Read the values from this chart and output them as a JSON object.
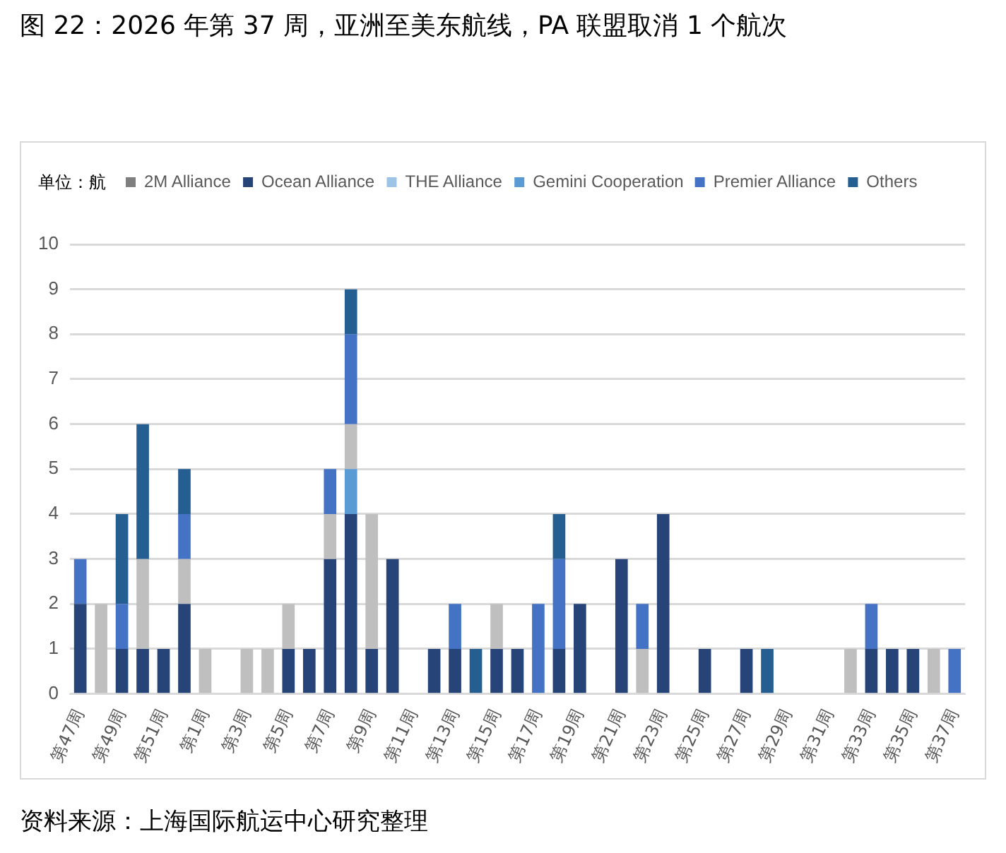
{
  "chart_data": {
    "type": "bar",
    "title": "图 22：2026 年第 37 周，亚洲至美东航线，PA 联盟取消 1 个航次",
    "ylabel": "单位：航",
    "categories": [
      "第47周",
      null,
      "第49周",
      null,
      "第51周",
      null,
      "第1周",
      null,
      "第3周",
      null,
      "第5周",
      null,
      "第7周",
      null,
      "第9周",
      null,
      "第11周",
      null,
      "第13周",
      null,
      "第15周",
      null,
      "第17周",
      null,
      "第19周",
      null,
      "第21周",
      null,
      "第23周",
      null,
      "第25周",
      null,
      "第27周",
      null,
      "第29周",
      null,
      "第31周",
      null,
      "第33周",
      null,
      "第35周",
      null,
      "第37周"
    ],
    "series": [
      {
        "name": "2M Alliance",
        "color": "#7f7f7f",
        "values": [
          0,
          0,
          0,
          0,
          0,
          0,
          0,
          0,
          0,
          0,
          0,
          0,
          0,
          0,
          0,
          0,
          0,
          0,
          0,
          0,
          0,
          0,
          0,
          0,
          0,
          0,
          0,
          0,
          0,
          0,
          0,
          0,
          0,
          0,
          0,
          0,
          0,
          0,
          0,
          0,
          0,
          0,
          0
        ]
      },
      {
        "name": "Ocean Alliance",
        "color": "#264478",
        "values": [
          2,
          0,
          1,
          1,
          1,
          2,
          0,
          0,
          0,
          0,
          1,
          1,
          3,
          4,
          1,
          3,
          0,
          1,
          1,
          0,
          1,
          1,
          0,
          1,
          2,
          0,
          3,
          0,
          4,
          0,
          1,
          0,
          1,
          0,
          0,
          0,
          0,
          0,
          1,
          1,
          1,
          0,
          0
        ]
      },
      {
        "name": "THE Alliance",
        "color": "#9dc3e6",
        "values": [
          0,
          0,
          0,
          0,
          0,
          0,
          0,
          0,
          0,
          0,
          0,
          0,
          0,
          0,
          0,
          0,
          0,
          0,
          0,
          0,
          0,
          0,
          0,
          0,
          0,
          0,
          0,
          0,
          0,
          0,
          0,
          0,
          0,
          0,
          0,
          0,
          0,
          0,
          0,
          0,
          0,
          0,
          0
        ]
      },
      {
        "name": "Gemini Cooperation",
        "color": "#5b9bd5",
        "values": [
          0,
          0,
          0,
          0,
          0,
          0,
          0,
          0,
          0,
          0,
          0,
          0,
          0,
          1,
          0,
          0,
          0,
          0,
          0,
          0,
          0,
          0,
          0,
          0,
          0,
          0,
          0,
          0,
          0,
          0,
          0,
          0,
          0,
          0,
          0,
          0,
          0,
          0,
          0,
          0,
          0,
          0,
          0
        ]
      },
      {
        "name": null,
        "color": "#bfbfbf",
        "values": [
          0,
          2,
          0,
          2,
          0,
          1,
          1,
          0,
          1,
          1,
          1,
          0,
          1,
          1,
          3,
          0,
          0,
          0,
          0,
          0,
          1,
          0,
          0,
          0,
          0,
          0,
          0,
          1,
          0,
          0,
          0,
          0,
          0,
          0,
          0,
          0,
          0,
          1,
          0,
          0,
          0,
          1,
          0
        ]
      },
      {
        "name": "Premier Alliance",
        "color": "#4472c4",
        "values": [
          1,
          0,
          1,
          0,
          0,
          1,
          0,
          0,
          0,
          0,
          0,
          0,
          1,
          2,
          0,
          0,
          0,
          0,
          1,
          0,
          0,
          0,
          2,
          2,
          0,
          0,
          0,
          1,
          0,
          0,
          0,
          0,
          0,
          0,
          0,
          0,
          0,
          0,
          1,
          0,
          0,
          0,
          1
        ]
      },
      {
        "name": "Others",
        "color": "#255e91",
        "values": [
          0,
          0,
          2,
          3,
          0,
          1,
          0,
          0,
          0,
          0,
          0,
          0,
          0,
          1,
          0,
          0,
          0,
          0,
          0,
          1,
          0,
          0,
          0,
          1,
          0,
          0,
          0,
          0,
          0,
          0,
          0,
          0,
          0,
          1,
          0,
          0,
          0,
          0,
          0,
          0,
          0,
          0,
          0
        ]
      }
    ],
    "stacked": true,
    "ylim": [
      0,
      10
    ],
    "yticks": [
      0,
      1,
      2,
      3,
      4,
      5,
      6,
      7,
      8,
      9,
      10
    ],
    "grid": "y",
    "legend": "top left",
    "annotations": [
      "资料来源：上海国际航运中心研究整理"
    ]
  }
}
